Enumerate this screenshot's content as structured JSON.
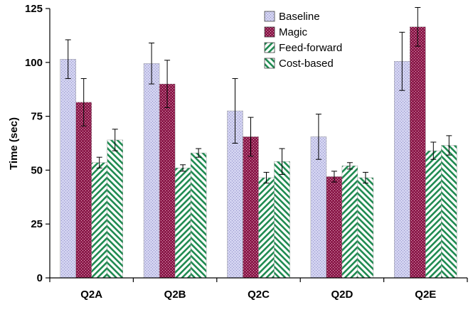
{
  "chart_data": {
    "type": "bar",
    "title": "",
    "xlabel": "",
    "ylabel": "Time (sec)",
    "ylim": [
      0,
      125
    ],
    "yticks": [
      0,
      25,
      50,
      75,
      100,
      125
    ],
    "grid": false,
    "legend_position": "top-right",
    "categories": [
      "Q2A",
      "Q2B",
      "Q2C",
      "Q2D",
      "Q2E"
    ],
    "series": [
      {
        "name": "Baseline",
        "pattern": "dots",
        "color": "#c8c8ec",
        "values": [
          101.5,
          99.5,
          77.5,
          65.5,
          100.5
        ],
        "errors": [
          9.0,
          9.5,
          15.0,
          10.5,
          13.5
        ]
      },
      {
        "name": "Magic",
        "pattern": "dots-dark",
        "color": "#8b1a4a",
        "values": [
          81.5,
          90.0,
          65.5,
          47.0,
          116.5
        ],
        "errors": [
          11.0,
          11.0,
          9.0,
          2.5,
          9.0
        ]
      },
      {
        "name": "Feed-forward",
        "pattern": "diagonal-up",
        "color": "#1e8a50",
        "values": [
          53.5,
          51.0,
          46.5,
          52.0,
          59.0
        ],
        "errors": [
          2.5,
          1.5,
          2.5,
          1.5,
          4.0
        ]
      },
      {
        "name": "Cost-based",
        "pattern": "diagonal-down",
        "color": "#1e8a50",
        "values": [
          64.0,
          58.0,
          54.0,
          46.5,
          61.5
        ],
        "errors": [
          5.0,
          2.0,
          6.0,
          2.5,
          4.5
        ]
      }
    ]
  }
}
